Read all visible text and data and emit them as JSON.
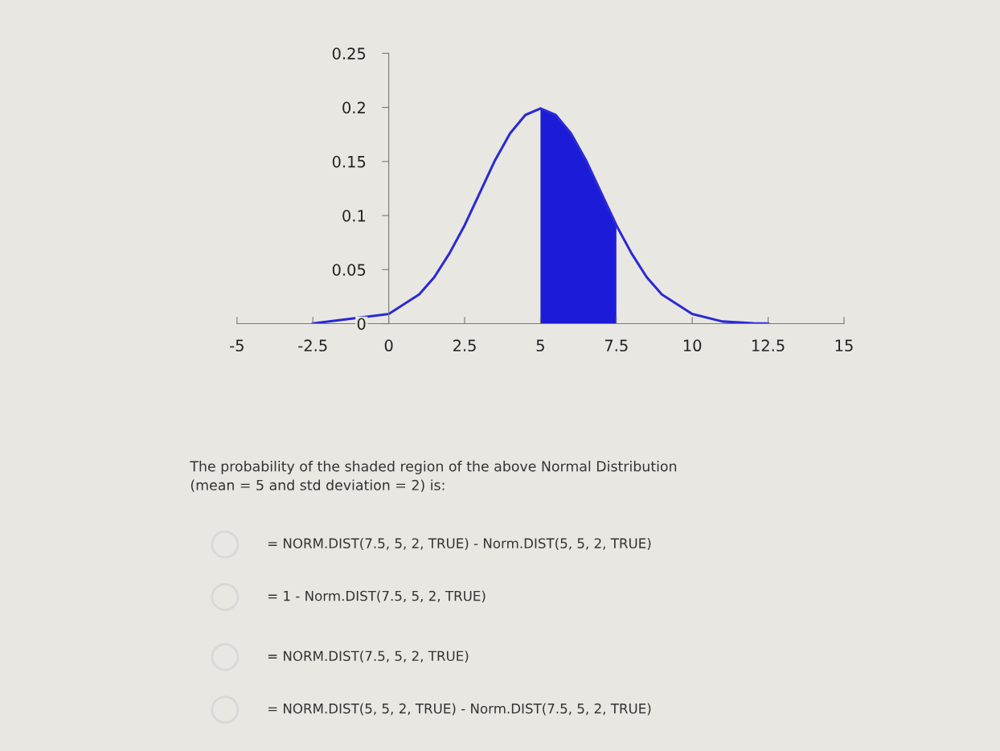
{
  "chart_data": {
    "type": "line",
    "series": [
      {
        "color": "#2a2ad6",
        "x": [
          -2.5,
          0,
          1,
          1.5,
          2,
          2.5,
          3,
          3.5,
          4,
          4.5,
          5,
          5.5,
          6,
          6.5,
          7,
          7.5,
          8,
          8.5,
          9,
          10,
          11,
          12,
          12.5
        ],
        "values": [
          0.0002,
          0.009,
          0.027,
          0.043,
          0.065,
          0.091,
          0.121,
          0.151,
          0.176,
          0.193,
          0.199,
          0.193,
          0.176,
          0.151,
          0.121,
          0.091,
          0.065,
          0.043,
          0.027,
          0.009,
          0.002,
          0.0004,
          0.0002
        ]
      },
      {
        "type": "area",
        "color": "#1c1cd8",
        "x": [
          5,
          5.5,
          6,
          6.5,
          7,
          7.5
        ],
        "values": [
          0.199,
          0.193,
          0.176,
          0.151,
          0.121,
          0.091
        ]
      }
    ],
    "xlim": [
      -5,
      15
    ],
    "xticks": [
      -5,
      -2.5,
      0,
      2.5,
      5,
      7.5,
      10,
      12.5,
      15
    ],
    "ylim": [
      0,
      0.25
    ],
    "yticks": [
      0,
      0.05,
      0.1,
      0.15,
      0.2,
      0.25
    ],
    "grid": false,
    "legend": false,
    "annotations": [
      "The probability of the shaded region of the above Normal Distribution\n(mean = 5 and std deviation = 2) is:",
      "= NORM.DIST(7.5, 5, 2, TRUE) - Norm.DIST(5, 5, 2, TRUE)",
      "= 1 - Norm.DIST(7.5, 5, 2, TRUE)",
      "= NORM.DIST(7.5, 5, 2, TRUE)",
      "= NORM.DIST(5, 5, 2, TRUE) - Norm.DIST(7.5, 5, 2, TRUE)"
    ]
  }
}
